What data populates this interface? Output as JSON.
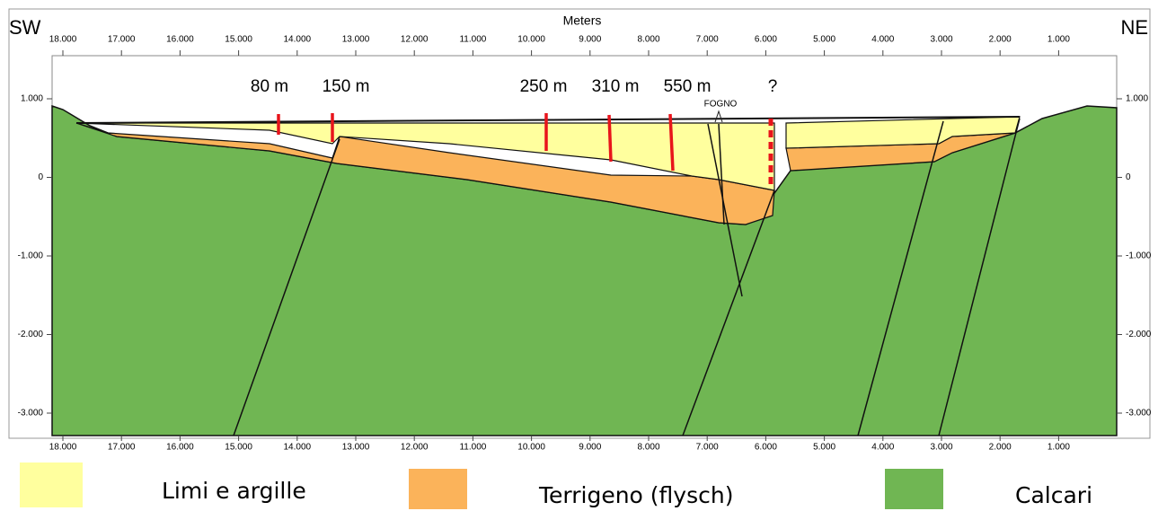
{
  "header": {
    "left": "SW",
    "right": "NE",
    "axis_title": "Meters"
  },
  "x_axis": {
    "labels": [
      "18.000",
      "17.000",
      "16.000",
      "15.000",
      "14.000",
      "13.000",
      "12.000",
      "11.000",
      "10.000",
      "9.000",
      "8.000",
      "7.000",
      "6.000",
      "5.000",
      "4.000",
      "3.000",
      "2.000",
      "1.000"
    ]
  },
  "y_axis": {
    "labels": [
      "1.000",
      "0",
      "-1.000",
      "-2.000",
      "-3.000"
    ]
  },
  "wells": [
    {
      "label": "80 m"
    },
    {
      "label": "150 m"
    },
    {
      "label": "250 m"
    },
    {
      "label": "310 m"
    },
    {
      "label": "550 m"
    },
    {
      "label": "?"
    }
  ],
  "annotation": "FOGNO",
  "legend": [
    {
      "label": "Limi e argille"
    },
    {
      "label": "Terrigeno (flysch)"
    },
    {
      "label": "Calcari"
    }
  ]
}
